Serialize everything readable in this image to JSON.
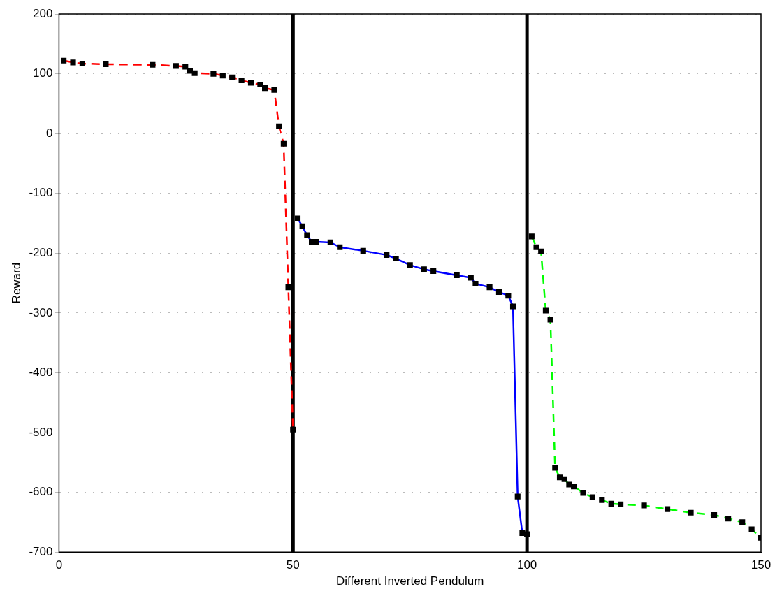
{
  "chart_data": {
    "type": "line",
    "xlabel": "Different Inverted Pendulum",
    "ylabel": "Reward",
    "xlim": [
      0,
      150
    ],
    "xticks": [
      0,
      50,
      100,
      150
    ],
    "ylim": [
      -700,
      200
    ],
    "yticks": [
      -700,
      -600,
      -500,
      -400,
      -300,
      -200,
      -100,
      0,
      100,
      200
    ],
    "grid": "y",
    "legend": false,
    "marker": "square",
    "ref_lines": [
      {
        "axis": "x",
        "value": 50,
        "color": "#000000"
      },
      {
        "axis": "x",
        "value": 100,
        "color": "#000000"
      }
    ],
    "series": [
      {
        "color": "#ff0000",
        "line_style": "dashed",
        "x": [
          1,
          3,
          5,
          10,
          20,
          25,
          27,
          28,
          29,
          33,
          35,
          37,
          39,
          41,
          43,
          44,
          46,
          47,
          48,
          49,
          50
        ],
        "values": [
          122,
          119,
          117,
          116,
          115,
          113,
          112,
          105,
          101,
          100,
          97,
          94,
          89,
          85,
          82,
          76,
          73,
          12,
          -17,
          -257,
          -495
        ]
      },
      {
        "color": "#0000ff",
        "line_style": "solid",
        "x": [
          51,
          52,
          53,
          54,
          55,
          58,
          60,
          65,
          70,
          72,
          75,
          78,
          80,
          85,
          88,
          89,
          92,
          94,
          96,
          97,
          98,
          99,
          100
        ],
        "values": [
          -142,
          -155,
          -170,
          -181,
          -181,
          -182,
          -190,
          -196,
          -203,
          -209,
          -220,
          -227,
          -230,
          -237,
          -241,
          -251,
          -257,
          -265,
          -271,
          -289,
          -607,
          -668,
          -670
        ]
      },
      {
        "color": "#00ff00",
        "line_style": "dashed",
        "x": [
          101,
          102,
          103,
          104,
          105,
          106,
          107,
          108,
          109,
          110,
          112,
          114,
          116,
          118,
          120,
          125,
          130,
          135,
          140,
          143,
          146,
          148,
          150
        ],
        "values": [
          -172,
          -190,
          -197,
          -296,
          -311,
          -559,
          -575,
          -578,
          -587,
          -590,
          -601,
          -608,
          -613,
          -619,
          -620,
          -622,
          -628,
          -634,
          -638,
          -644,
          -650,
          -662,
          -676
        ]
      }
    ]
  }
}
